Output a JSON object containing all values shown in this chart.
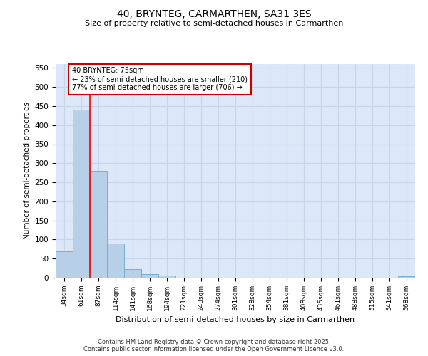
{
  "title": "40, BRYNTEG, CARMARTHEN, SA31 3ES",
  "subtitle": "Size of property relative to semi-detached houses in Carmarthen",
  "xlabel": "Distribution of semi-detached houses by size in Carmarthen",
  "ylabel": "Number of semi-detached properties",
  "bins": [
    "34sqm",
    "61sqm",
    "87sqm",
    "114sqm",
    "141sqm",
    "168sqm",
    "194sqm",
    "221sqm",
    "248sqm",
    "274sqm",
    "301sqm",
    "328sqm",
    "354sqm",
    "381sqm",
    "408sqm",
    "435sqm",
    "461sqm",
    "488sqm",
    "515sqm",
    "541sqm",
    "568sqm"
  ],
  "values": [
    70,
    440,
    280,
    90,
    23,
    10,
    5,
    0,
    0,
    0,
    0,
    0,
    0,
    0,
    0,
    0,
    0,
    0,
    0,
    0,
    4
  ],
  "bar_color": "#b8cfe8",
  "bar_edge_color": "#7aadd4",
  "red_line_x": 1.5,
  "annotation_text": "40 BRYNTEG: 75sqm\n← 23% of semi-detached houses are smaller (210)\n77% of semi-detached houses are larger (706) →",
  "annotation_box_color": "#ffffff",
  "annotation_box_edge_color": "#cc0000",
  "grid_color": "#c8d4e8",
  "background_color": "#dce8f8",
  "footer_line1": "Contains HM Land Registry data © Crown copyright and database right 2025.",
  "footer_line2": "Contains public sector information licensed under the Open Government Licence v3.0.",
  "ylim": [
    0,
    560
  ],
  "yticks": [
    0,
    50,
    100,
    150,
    200,
    250,
    300,
    350,
    400,
    450,
    500,
    550
  ]
}
